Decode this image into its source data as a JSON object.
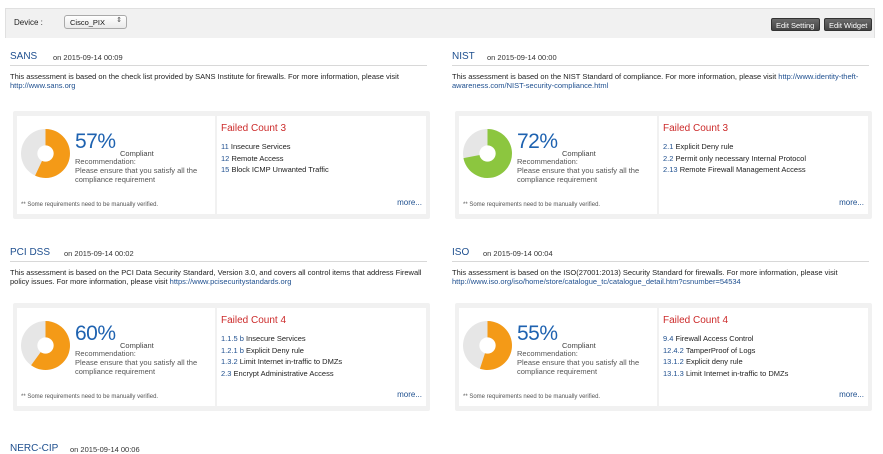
{
  "toolbar": {
    "device_label": "Device :",
    "device_selected": "Cisco_PIX",
    "edit_setting": "Edit Setting",
    "edit_widget": "Edit Widget"
  },
  "colors": {
    "orange": "#f49a17",
    "green": "#8cc63f",
    "gray": "#e6e6e6"
  },
  "panels": [
    {
      "title": "SANS",
      "date": "on 2015-09-14 00:09",
      "desc": "This assessment is based on the check list provided by SANS Institute for firewalls. For more information, please visit",
      "link": "http://www.sans.org",
      "percent": 57,
      "percent_label": "57%",
      "compliant": "Compliant",
      "recommendation": "Recommendation:",
      "reco_text": "Please ensure that you satisfy all the compliance requirement",
      "note": "** Some requirements need to be manually verified.",
      "failed": "Failed Count 3",
      "items": [
        {
          "num": "11",
          "text": "Insecure Services"
        },
        {
          "num": "12",
          "text": "Remote Access"
        },
        {
          "num": "15",
          "text": "Block ICMP Unwanted Traffic"
        }
      ],
      "more": "more..."
    },
    {
      "title": "NIST",
      "date": "on 2015-09-14 00:00",
      "desc": "This assessment is based on the NIST Standard of compliance. For more information, please visit",
      "link": "http://www.identity-theft-awareness.com/NIST-security-compliance.html",
      "percent": 72,
      "percent_label": "72%",
      "compliant": "Compliant",
      "recommendation": "Recommendation:",
      "reco_text": "Please ensure that you satisfy all the compliance requirement",
      "note": "** Some requirements need to be manually verified.",
      "failed": "Failed Count 3",
      "items": [
        {
          "num": "2.1",
          "text": "Explicit Deny rule"
        },
        {
          "num": "2.2",
          "text": "Permit only necessary Internal Protocol"
        },
        {
          "num": "2.13",
          "text": "Remote Firewall Management Access"
        }
      ],
      "more": "more..."
    },
    {
      "title": "PCI DSS",
      "date": "on 2015-09-14 00:02",
      "desc": "This assessment is based on the PCI Data Security Standard, Version 3.0, and covers all control items that address Firewall policy issues. For more information, please visit",
      "link": "https://www.pcisecuritystandards.org",
      "percent": 60,
      "percent_label": "60%",
      "compliant": "Compliant",
      "recommendation": "Recommendation:",
      "reco_text": "Please ensure that you satisfy all the compliance requirement",
      "note": "** Some requirements need to be manually verified.",
      "failed": "Failed Count 4",
      "items": [
        {
          "num": "1.1.5 b",
          "text": "Insecure Services"
        },
        {
          "num": "1.2.1 b",
          "text": "Explicit Deny rule"
        },
        {
          "num": "1.3.2",
          "text": "Limit Internet in-traffic to DMZs"
        },
        {
          "num": "2.3",
          "text": "Encrypt Administrative Access"
        }
      ],
      "more": "more..."
    },
    {
      "title": "ISO",
      "date": "on 2015-09-14 00:04",
      "desc": "This assessment is based on the ISO(27001:2013) Security Standard for firewalls. For more information, please visit",
      "link": "http://www.iso.org/iso/home/store/catalogue_tc/catalogue_detail.htm?csnumber=54534",
      "percent": 55,
      "percent_label": "55%",
      "compliant": "Compliant",
      "recommendation": "Recommendation:",
      "reco_text": "Please ensure that you satisfy all the compliance requirement",
      "note": "** Some requirements need to be manually verified.",
      "failed": "Failed Count 4",
      "items": [
        {
          "num": "9.4",
          "text": "Firewall Access Control"
        },
        {
          "num": "12.4.2",
          "text": "TamperProof of Logs"
        },
        {
          "num": "13.1.2",
          "text": "Explicit deny rule"
        },
        {
          "num": "13.1.3",
          "text": "Limit Internet in-traffic to DMZs"
        }
      ],
      "more": "more..."
    },
    {
      "title": "NERC-CIP",
      "date": "on 2015-09-14 00:06"
    }
  ]
}
